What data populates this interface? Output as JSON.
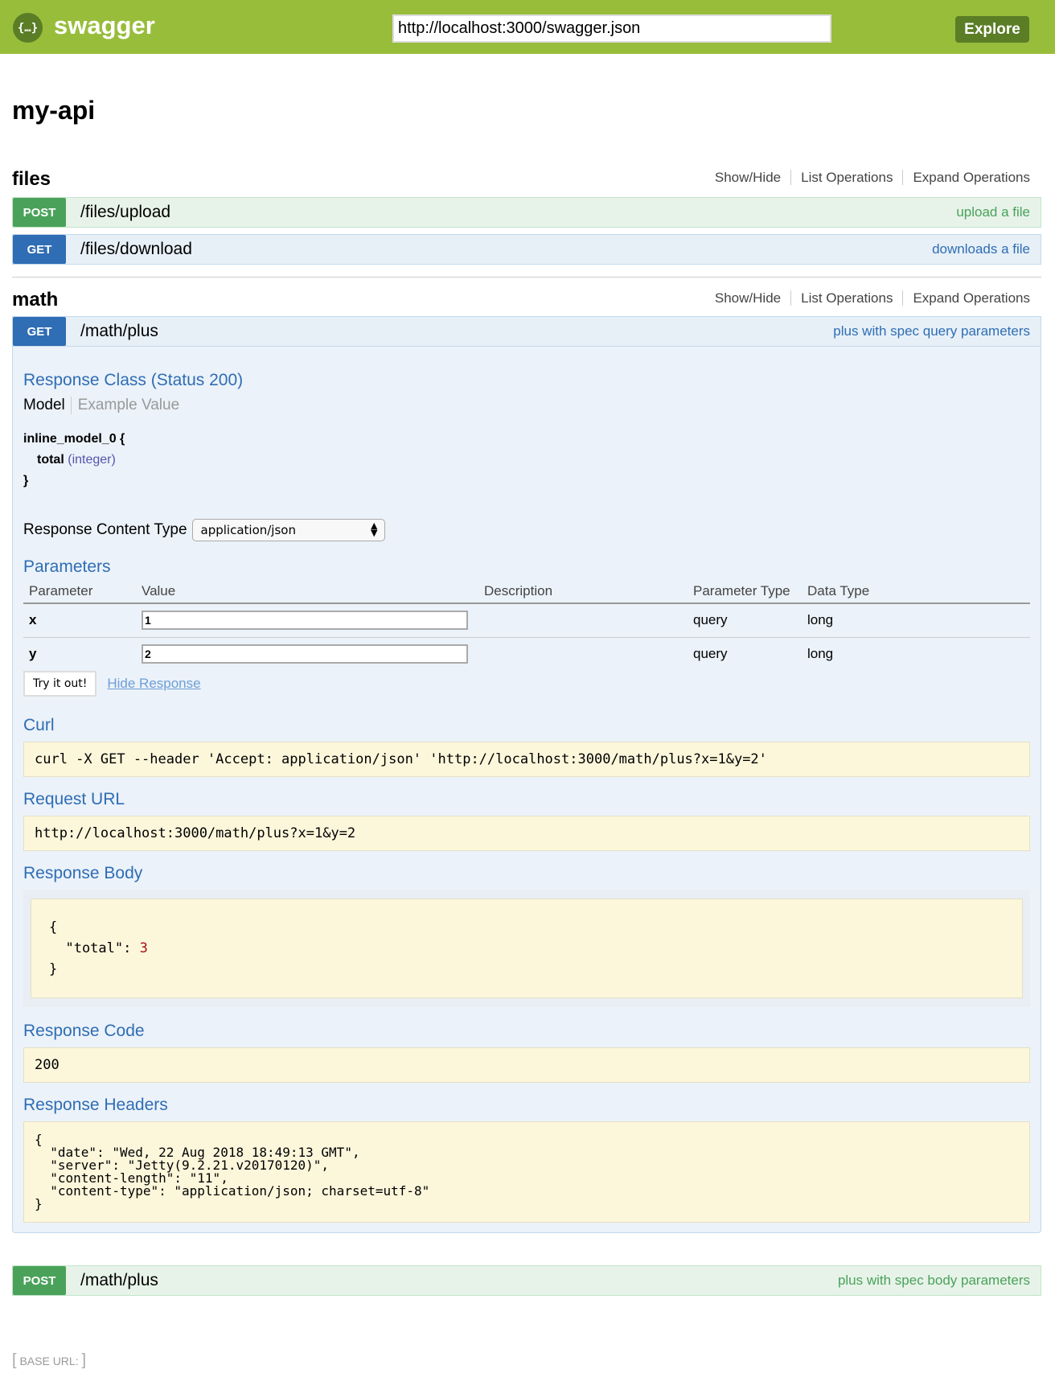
{
  "header": {
    "brand": "swagger",
    "logo_icon": "swagger-braces-icon",
    "url": "http://localhost:3000/swagger.json",
    "explore": "Explore"
  },
  "title": "my-api",
  "ops_links": {
    "show_hide": "Show/Hide",
    "list": "List Operations",
    "expand": "Expand Operations"
  },
  "resources": [
    {
      "name": "files",
      "operations": [
        {
          "method": "POST",
          "path": "/files/upload",
          "summary": "upload a file"
        },
        {
          "method": "GET",
          "path": "/files/download",
          "summary": "downloads a file"
        }
      ]
    },
    {
      "name": "math",
      "operations": [
        {
          "method": "GET",
          "path": "/math/plus",
          "summary": "plus with spec query parameters"
        },
        {
          "method": "POST",
          "path": "/math/plus",
          "summary": "plus with spec body parameters"
        }
      ]
    }
  ],
  "expanded": {
    "response_class": "Response Class (Status 200)",
    "tab_model": "Model",
    "tab_example": "Example Value",
    "model_name": "inline_model_0 {",
    "model_field": "total",
    "model_type": "(integer)",
    "model_close": "}",
    "content_type_label": "Response Content Type",
    "content_type": "application/json",
    "parameters_title": "Parameters",
    "columns": [
      "Parameter",
      "Value",
      "Description",
      "Parameter Type",
      "Data Type"
    ],
    "params": [
      {
        "name": "x",
        "value": "1",
        "description": "",
        "type": "query",
        "data_type": "long"
      },
      {
        "name": "y",
        "value": "2",
        "description": "",
        "type": "query",
        "data_type": "long"
      }
    ],
    "try_label": "Try it out!",
    "hide_response": "Hide Response",
    "curl_title": "Curl",
    "curl": "curl -X GET --header 'Accept: application/json' 'http://localhost:3000/math/plus?x=1&y=2'",
    "request_url_title": "Request URL",
    "request_url": "http://localhost:3000/math/plus?x=1&y=2",
    "response_body_title": "Response Body",
    "body_open": "{",
    "body_key": "  \"total\": ",
    "body_value": "3",
    "body_close": "}",
    "response_code_title": "Response Code",
    "response_code": "200",
    "response_headers_title": "Response Headers",
    "response_headers": "{\n  \"date\": \"Wed, 22 Aug 2018 18:49:13 GMT\",\n  \"server\": \"Jetty(9.2.21.v20170120)\",\n  \"content-length\": \"11\",\n  \"content-type\": \"application/json; charset=utf-8\"\n}"
  },
  "base_url": {
    "label": "BASE URL",
    "value": ""
  }
}
